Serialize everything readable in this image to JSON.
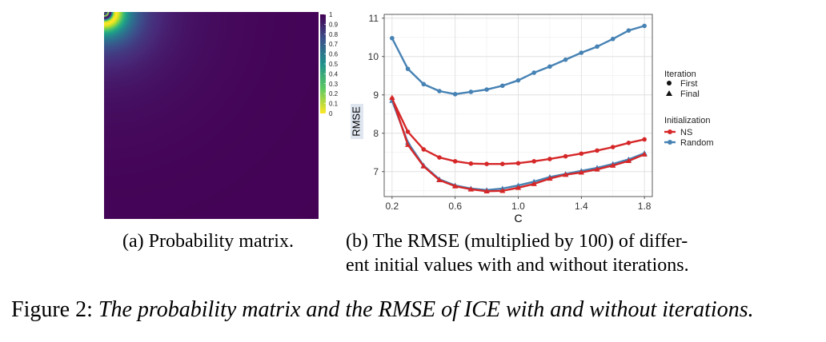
{
  "chart_data": [
    {
      "type": "heatmap",
      "title": "",
      "colormap": "viridis-reversed",
      "colorbar": {
        "ticks": [
          "1",
          "0.9",
          "0.8",
          "0.7",
          "0.6",
          "0.5",
          "0.4",
          "0.3",
          "0.2",
          "0.1",
          "0"
        ],
        "range": [
          0,
          1
        ]
      }
    },
    {
      "type": "line",
      "xlabel": "C",
      "ylabel": "RMSE",
      "xlim": [
        0.15,
        1.85
      ],
      "ylim": [
        6.35,
        11.1
      ],
      "xticks": [
        "0.2",
        "0.6",
        "1.0",
        "1.4",
        "1.8"
      ],
      "yticks": [
        "7",
        "8",
        "9",
        "10",
        "11"
      ],
      "grid": true,
      "legend": {
        "iteration_title": "Iteration",
        "iteration_entries": [
          {
            "label": "First",
            "marker": "circle"
          },
          {
            "label": "Final",
            "marker": "triangle"
          }
        ],
        "init_title": "Initialization",
        "init_entries": [
          {
            "label": "NS",
            "color": "#d62728"
          },
          {
            "label": "Random",
            "color": "#4682b4"
          }
        ]
      },
      "x": [
        0.2,
        0.3,
        0.4,
        0.5,
        0.6,
        0.7,
        0.8,
        0.9,
        1.0,
        1.1,
        1.2,
        1.3,
        1.4,
        1.5,
        1.6,
        1.7,
        1.8
      ],
      "series": [
        {
          "name": "Random-First",
          "color": "#4682b4",
          "marker": "circle",
          "values": [
            10.48,
            9.68,
            9.28,
            9.1,
            9.02,
            9.08,
            9.14,
            9.24,
            9.38,
            9.58,
            9.74,
            9.92,
            10.1,
            10.26,
            10.46,
            10.68,
            10.8
          ]
        },
        {
          "name": "NS-First",
          "color": "#d62728",
          "marker": "circle",
          "values": [
            8.9,
            8.04,
            7.58,
            7.37,
            7.27,
            7.21,
            7.2,
            7.2,
            7.22,
            7.27,
            7.33,
            7.4,
            7.47,
            7.55,
            7.64,
            7.75,
            7.84
          ]
        },
        {
          "name": "Random-Final",
          "color": "#4682b4",
          "marker": "triangle",
          "values": [
            8.85,
            7.76,
            7.16,
            6.8,
            6.64,
            6.56,
            6.52,
            6.56,
            6.64,
            6.74,
            6.86,
            6.94,
            7.02,
            7.1,
            7.2,
            7.32,
            7.48
          ]
        },
        {
          "name": "NS-Final",
          "color": "#d62728",
          "marker": "triangle",
          "values": [
            8.93,
            7.7,
            7.14,
            6.78,
            6.62,
            6.54,
            6.49,
            6.5,
            6.58,
            6.68,
            6.82,
            6.92,
            6.98,
            7.06,
            7.16,
            7.28,
            7.45
          ]
        }
      ]
    }
  ],
  "captions": {
    "a_label": "(a)",
    "a_text": "Probability matrix.",
    "b_label": "(b)",
    "b_line1": "The RMSE (multiplied by 100) of differ-",
    "b_line2": "ent initial values with and without iterations.",
    "figure_label": "Figure 2:",
    "figure_text": "The probability matrix and the RMSE of ICE with and without iterations."
  }
}
